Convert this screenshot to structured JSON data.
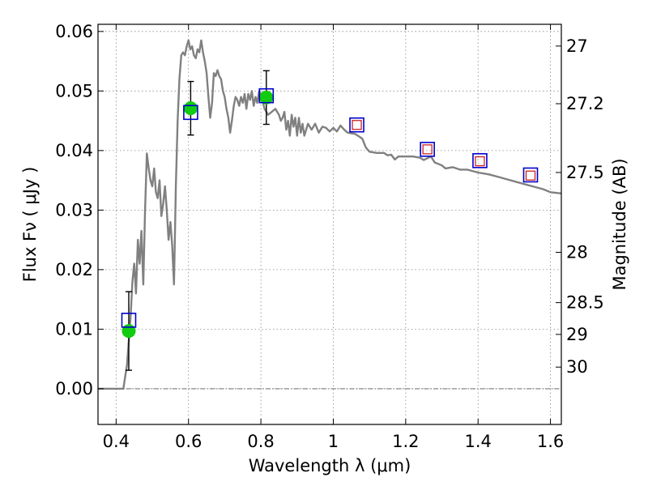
{
  "chart_data": {
    "type": "scatter",
    "xlabel": "Wavelength  λ (μm)",
    "ylabel": "Flux  Fν  ( μJy )",
    "y2label": "Magnitude (AB)",
    "xlim": [
      0.35,
      1.63
    ],
    "ylim": [
      -0.006,
      0.0612
    ],
    "grid": true,
    "x_ticks": [
      {
        "value": 0.4,
        "label": "0.4"
      },
      {
        "value": 0.6,
        "label": "0.6"
      },
      {
        "value": 0.8,
        "label": "0.8"
      },
      {
        "value": 1.0,
        "label": "1"
      },
      {
        "value": 1.2,
        "label": "1.2"
      },
      {
        "value": 1.4,
        "label": "1.4"
      },
      {
        "value": 1.6,
        "label": "1.6"
      }
    ],
    "y_ticks": [
      {
        "value": 0.0,
        "label": "0.00"
      },
      {
        "value": 0.01,
        "label": "0.01"
      },
      {
        "value": 0.02,
        "label": "0.02"
      },
      {
        "value": 0.03,
        "label": "0.03"
      },
      {
        "value": 0.04,
        "label": "0.04"
      },
      {
        "value": 0.05,
        "label": "0.05"
      },
      {
        "value": 0.06,
        "label": "0.06"
      }
    ],
    "y2_ticks": [
      {
        "value": 27,
        "label": "27"
      },
      {
        "value": 27.2,
        "label": "27.2"
      },
      {
        "value": 27.5,
        "label": "27.5"
      },
      {
        "value": 28,
        "label": "28"
      },
      {
        "value": 28.5,
        "label": "28.5"
      },
      {
        "value": 29,
        "label": "29"
      },
      {
        "value": 30,
        "label": "30"
      }
    ],
    "colors": {
      "model": "#808080",
      "observed": "#11cc11",
      "model_photometry_outer": "#0000cc",
      "model_photometry_inner": "#cc2222",
      "errorbar": "#000000",
      "zero_line": "#555555",
      "grid": "#888888"
    },
    "series": [
      {
        "points": [
          [
            0.35,
            0.0
          ],
          [
            0.42,
            0.0
          ],
          [
            0.425,
            0.002
          ],
          [
            0.43,
            0.004
          ],
          [
            0.435,
            0.008
          ],
          [
            0.44,
            0.012
          ],
          [
            0.445,
            0.018
          ],
          [
            0.45,
            0.021
          ],
          [
            0.455,
            0.016
          ],
          [
            0.46,
            0.025
          ],
          [
            0.465,
            0.021
          ],
          [
            0.47,
            0.0265
          ],
          [
            0.475,
            0.0175
          ],
          [
            0.48,
            0.03
          ],
          [
            0.485,
            0.0395
          ],
          [
            0.49,
            0.037
          ],
          [
            0.495,
            0.035
          ],
          [
            0.5,
            0.034
          ],
          [
            0.505,
            0.037
          ],
          [
            0.51,
            0.033
          ],
          [
            0.515,
            0.032
          ],
          [
            0.52,
            0.035
          ],
          [
            0.525,
            0.029
          ],
          [
            0.53,
            0.031
          ],
          [
            0.535,
            0.034
          ],
          [
            0.54,
            0.03
          ],
          [
            0.545,
            0.025
          ],
          [
            0.55,
            0.028
          ],
          [
            0.555,
            0.024
          ],
          [
            0.56,
            0.0175
          ],
          [
            0.565,
            0.034
          ],
          [
            0.57,
            0.045
          ],
          [
            0.575,
            0.052
          ],
          [
            0.58,
            0.056
          ],
          [
            0.585,
            0.0565
          ],
          [
            0.59,
            0.056
          ],
          [
            0.595,
            0.0575
          ],
          [
            0.6,
            0.0585
          ],
          [
            0.605,
            0.057
          ],
          [
            0.61,
            0.0575
          ],
          [
            0.615,
            0.056
          ],
          [
            0.62,
            0.0555
          ],
          [
            0.625,
            0.057
          ],
          [
            0.63,
            0.0565
          ],
          [
            0.635,
            0.0585
          ],
          [
            0.64,
            0.0565
          ],
          [
            0.645,
            0.055
          ],
          [
            0.65,
            0.053
          ],
          [
            0.655,
            0.049
          ],
          [
            0.66,
            0.0455
          ],
          [
            0.665,
            0.048
          ],
          [
            0.67,
            0.053
          ],
          [
            0.675,
            0.0525
          ],
          [
            0.68,
            0.0535
          ],
          [
            0.685,
            0.0525
          ],
          [
            0.69,
            0.052
          ],
          [
            0.695,
            0.05
          ],
          [
            0.7,
            0.049
          ],
          [
            0.705,
            0.047
          ],
          [
            0.71,
            0.0455
          ],
          [
            0.715,
            0.043
          ],
          [
            0.72,
            0.045
          ],
          [
            0.725,
            0.0475
          ],
          [
            0.73,
            0.049
          ],
          [
            0.735,
            0.0485
          ],
          [
            0.74,
            0.0475
          ],
          [
            0.745,
            0.049
          ],
          [
            0.75,
            0.048
          ],
          [
            0.755,
            0.0495
          ],
          [
            0.76,
            0.047
          ],
          [
            0.765,
            0.0495
          ],
          [
            0.77,
            0.0485
          ],
          [
            0.775,
            0.05
          ],
          [
            0.78,
            0.0475
          ],
          [
            0.785,
            0.049
          ],
          [
            0.79,
            0.048
          ],
          [
            0.795,
            0.05
          ],
          [
            0.8,
            0.0495
          ],
          [
            0.81,
            0.047
          ],
          [
            0.82,
            0.046
          ],
          [
            0.83,
            0.0465
          ],
          [
            0.84,
            0.047
          ],
          [
            0.85,
            0.046
          ],
          [
            0.855,
            0.045
          ],
          [
            0.86,
            0.0455
          ],
          [
            0.865,
            0.0465
          ],
          [
            0.87,
            0.0435
          ],
          [
            0.875,
            0.045
          ],
          [
            0.88,
            0.0425
          ],
          [
            0.885,
            0.046
          ],
          [
            0.89,
            0.044
          ],
          [
            0.895,
            0.0455
          ],
          [
            0.9,
            0.0425
          ],
          [
            0.905,
            0.0455
          ],
          [
            0.91,
            0.043
          ],
          [
            0.915,
            0.0445
          ],
          [
            0.92,
            0.0425
          ],
          [
            0.93,
            0.0445
          ],
          [
            0.94,
            0.0435
          ],
          [
            0.95,
            0.0445
          ],
          [
            0.96,
            0.043
          ],
          [
            0.97,
            0.044
          ],
          [
            0.98,
            0.0438
          ],
          [
            0.99,
            0.0432
          ],
          [
            1.0,
            0.0438
          ],
          [
            1.01,
            0.0432
          ],
          [
            1.02,
            0.0442
          ],
          [
            1.03,
            0.0435
          ],
          [
            1.04,
            0.043
          ],
          [
            1.06,
            0.0428
          ],
          [
            1.08,
            0.042
          ],
          [
            1.09,
            0.0405
          ],
          [
            1.1,
            0.0398
          ],
          [
            1.12,
            0.0396
          ],
          [
            1.14,
            0.0396
          ],
          [
            1.15,
            0.0392
          ],
          [
            1.16,
            0.0393
          ],
          [
            1.17,
            0.0385
          ],
          [
            1.18,
            0.039
          ],
          [
            1.2,
            0.039
          ],
          [
            1.22,
            0.039
          ],
          [
            1.24,
            0.0388
          ],
          [
            1.25,
            0.0384
          ],
          [
            1.27,
            0.039
          ],
          [
            1.28,
            0.038
          ],
          [
            1.3,
            0.0375
          ],
          [
            1.31,
            0.037
          ],
          [
            1.33,
            0.0372
          ],
          [
            1.35,
            0.0368
          ],
          [
            1.37,
            0.0368
          ],
          [
            1.4,
            0.0363
          ],
          [
            1.43,
            0.036
          ],
          [
            1.46,
            0.0355
          ],
          [
            1.49,
            0.035
          ],
          [
            1.52,
            0.0345
          ],
          [
            1.55,
            0.034
          ],
          [
            1.58,
            0.0335
          ],
          [
            1.6,
            0.033
          ],
          [
            1.63,
            0.0328
          ]
        ]
      },
      {
        "points": [
          {
            "x": 0.435,
            "y": 0.0097,
            "yerr": 0.0066
          },
          {
            "x": 0.606,
            "y": 0.0471,
            "yerr": 0.0045
          },
          {
            "x": 0.815,
            "y": 0.0489,
            "yerr": 0.0045
          }
        ]
      },
      {
        "points": [
          {
            "x": 0.435,
            "y": 0.0115
          },
          {
            "x": 0.606,
            "y": 0.0464
          },
          {
            "x": 0.815,
            "y": 0.0492
          },
          {
            "x": 1.065,
            "y": 0.0443
          },
          {
            "x": 1.26,
            "y": 0.0402
          },
          {
            "x": 1.405,
            "y": 0.0383
          },
          {
            "x": 1.545,
            "y": 0.0359
          }
        ]
      },
      {
        "points": [
          {
            "x": 1.065,
            "y": 0.0443
          },
          {
            "x": 1.26,
            "y": 0.0402
          },
          {
            "x": 1.405,
            "y": 0.0382
          },
          {
            "x": 1.545,
            "y": 0.0358
          }
        ]
      }
    ]
  }
}
